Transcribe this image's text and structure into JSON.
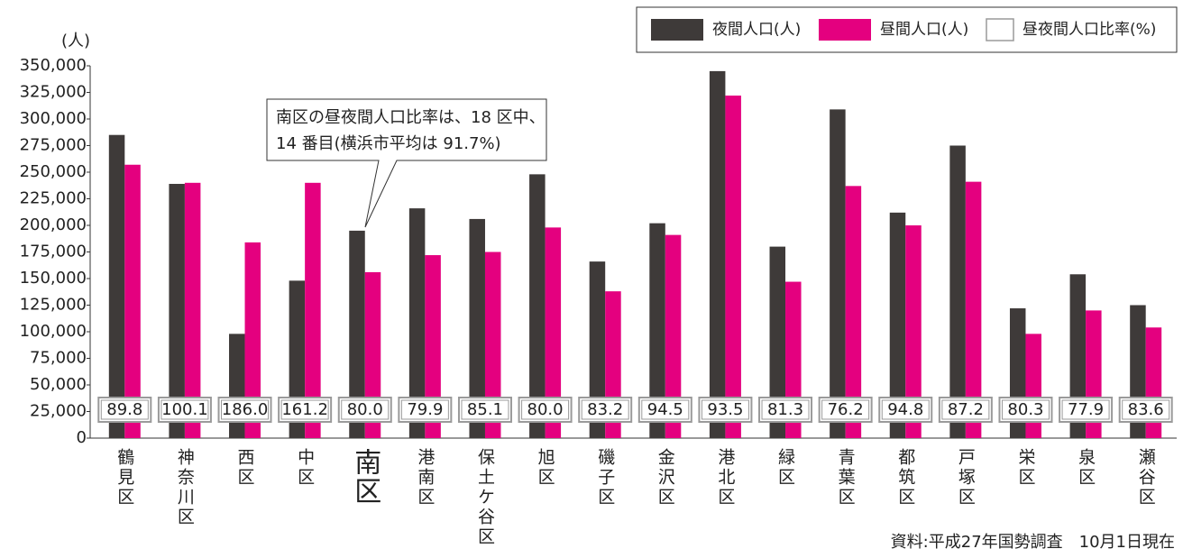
{
  "chart_data": {
    "type": "bar",
    "y_label": "(人)",
    "categories": [
      "鶴見区",
      "神奈川区",
      "西区",
      "中区",
      "南区",
      "港南区",
      "保土ケ谷区",
      "旭区",
      "磯子区",
      "金沢区",
      "港北区",
      "緑区",
      "青葉区",
      "都筑区",
      "戸塚区",
      "栄区",
      "泉区",
      "瀬谷区"
    ],
    "series": [
      {
        "name": "夜間人口(人)",
        "color": "#3e3a39",
        "values": [
          285000,
          239000,
          98000,
          148000,
          195000,
          216000,
          206000,
          248000,
          166000,
          202000,
          345000,
          180000,
          309000,
          212000,
          275000,
          122000,
          154000,
          125000
        ]
      },
      {
        "name": "昼間人口(人)",
        "color": "#e4007f",
        "values": [
          257000,
          240000,
          184000,
          240000,
          156000,
          172000,
          175000,
          198000,
          138000,
          191000,
          322000,
          147000,
          237000,
          200000,
          241000,
          98000,
          120000,
          104000
        ]
      }
    ],
    "ratio": {
      "name": "昼夜間人口比率(%)",
      "color": "#ffffff",
      "border": "#9a9a9a",
      "values": [
        89.8,
        100.1,
        186.0,
        161.2,
        80.0,
        79.9,
        85.1,
        80.0,
        83.2,
        94.5,
        93.5,
        81.3,
        76.2,
        94.8,
        87.2,
        80.3,
        77.9,
        83.6
      ],
      "value_labels": [
        "89.8",
        "100.1",
        "186.0",
        "161.2",
        "80.0",
        "79.9",
        "85.1",
        "80.0",
        "83.2",
        "94.5",
        "93.5",
        "81.3",
        "76.2",
        "94.8",
        "87.2",
        "80.3",
        "77.9",
        "83.6"
      ]
    },
    "highlight": {
      "index": 4,
      "color": "#e4007f"
    },
    "ylim": [
      0,
      350000
    ],
    "yticks": [
      0,
      {
        "value": 25000,
        "label": "25,000"
      },
      {
        "value": 50000,
        "label": "50,000"
      },
      {
        "value": 75000,
        "label": "75,000"
      },
      {
        "value": 100000,
        "label": "100,000"
      },
      {
        "value": 125000,
        "label": "125,000"
      },
      {
        "value": 150000,
        "label": "150,000"
      },
      {
        "value": 175000,
        "label": "175,000"
      },
      {
        "value": 200000,
        "label": "200,000"
      },
      {
        "value": 225000,
        "label": "225,000"
      },
      {
        "value": 250000,
        "label": "250,000"
      },
      {
        "value": 275000,
        "label": "275,000"
      },
      {
        "value": 300000,
        "label": "300,000"
      },
      {
        "value": 325000,
        "label": "325,000"
      },
      {
        "value": 350000,
        "label": "350,000"
      }
    ],
    "annotation": [
      "南区の昼夜間人口比率は、18 区中、",
      "14 番目(横浜市平均は 91.7%)"
    ],
    "source": "資料:平成27年国勢調査　10月1日現在",
    "legend": "top-right"
  }
}
